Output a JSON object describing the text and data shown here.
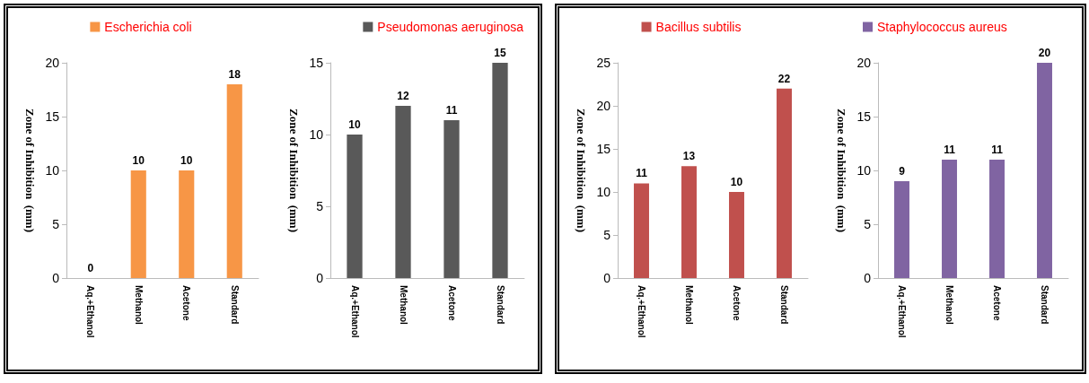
{
  "chart_data": [
    {
      "type": "bar",
      "categories": [
        "Aq.+Ethanol",
        "Methanol",
        "Acetone",
        "Standard"
      ],
      "ylabel": "Zone of Inhibition  (mm)",
      "ylim": [
        0,
        20
      ],
      "yticks": [
        0,
        5,
        10,
        15,
        20
      ],
      "legend": "top",
      "data_labels": true,
      "grid": false,
      "series": [
        {
          "name": "Escherichia coli",
          "color": "#f79646",
          "values": [
            0,
            10,
            10,
            18
          ]
        }
      ]
    },
    {
      "type": "bar",
      "categories": [
        "Aq.+Ethanol",
        "Methanol",
        "Acetone",
        "Standard"
      ],
      "ylabel": "Zone of Inhibition  (mm)",
      "ylim": [
        0,
        15
      ],
      "yticks": [
        0,
        5,
        10,
        15
      ],
      "legend": "top right",
      "data_labels": true,
      "grid": false,
      "series": [
        {
          "name": "Pseudomonas aeruginosa",
          "color": "#595959",
          "values": [
            10,
            12,
            11,
            15
          ]
        }
      ]
    },
    {
      "type": "bar",
      "categories": [
        "Aq.+Ethanol",
        "Methanol",
        "Acetone",
        "Standard"
      ],
      "ylabel": "Zone of Inhibition  (mm)",
      "ylim": [
        0,
        25
      ],
      "yticks": [
        0,
        5,
        10,
        15,
        20,
        25
      ],
      "legend": "top",
      "data_labels": true,
      "grid": false,
      "series": [
        {
          "name": "Bacillus subtilis",
          "color": "#c0504d",
          "values": [
            11,
            13,
            10,
            22
          ]
        }
      ]
    },
    {
      "type": "bar",
      "categories": [
        "Aq.+Ethanol",
        "Methanol",
        "Acetone",
        "Standard"
      ],
      "ylabel": "Zone of Inhibition  (mm)",
      "ylim": [
        0,
        20
      ],
      "yticks": [
        0,
        5,
        10,
        15,
        20
      ],
      "legend": "top left",
      "data_labels": true,
      "grid": false,
      "series": [
        {
          "name": "Staphylococcus aureus",
          "color": "#8064a2",
          "values": [
            9,
            11,
            11,
            20
          ]
        }
      ]
    }
  ]
}
